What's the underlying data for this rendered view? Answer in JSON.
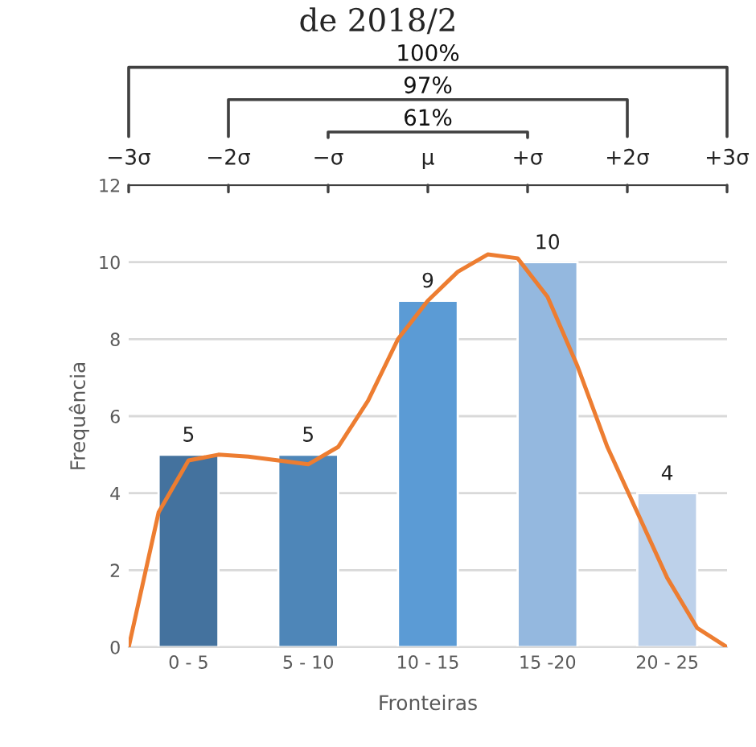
{
  "chart_data": {
    "type": "bar",
    "title": "de 2018/2",
    "xlabel": "Fronteiras",
    "ylabel": "Frequência",
    "categories": [
      null,
      null,
      "0 - 5",
      null,
      null,
      null,
      "5 - 10",
      null,
      null,
      null,
      "10 - 15",
      null,
      null,
      null,
      "15 -20",
      null,
      null,
      null,
      "20 - 25",
      null,
      null
    ],
    "ylim": [
      0,
      12
    ],
    "yticks": [
      0,
      2,
      4,
      6,
      8,
      10,
      12
    ],
    "grid": "y",
    "series": [
      {
        "values": [
          null,
          null,
          5,
          null,
          null,
          null,
          5,
          null,
          null,
          null,
          9,
          null,
          null,
          null,
          10,
          null,
          null,
          null,
          4,
          null,
          null
        ],
        "colors": [
          null,
          null,
          "#44729e",
          null,
          null,
          null,
          "#4e86b8",
          null,
          null,
          null,
          "#5b9bd5",
          null,
          null,
          null,
          "#94b8df",
          null,
          null,
          null,
          "#bdd1ea",
          null,
          null
        ],
        "value_labels": [
          null,
          null,
          "5",
          null,
          null,
          null,
          "5",
          null,
          null,
          null,
          "9",
          null,
          null,
          null,
          "10",
          null,
          null,
          null,
          "4",
          null,
          null
        ]
      },
      {
        "type": "line",
        "color": "#ed7d31",
        "values": [
          0,
          3.5,
          4.85,
          5.0,
          4.95,
          4.85,
          4.75,
          5.2,
          6.4,
          8.0,
          9.0,
          9.75,
          10.2,
          10.1,
          9.1,
          7.3,
          5.2,
          3.5,
          1.8,
          0.5,
          0
        ]
      }
    ],
    "annotations": [
      "100%",
      "97%",
      "61%",
      "−3σ",
      "−2σ",
      "−σ",
      "μ",
      "+σ",
      "+2σ",
      "+3σ"
    ]
  }
}
